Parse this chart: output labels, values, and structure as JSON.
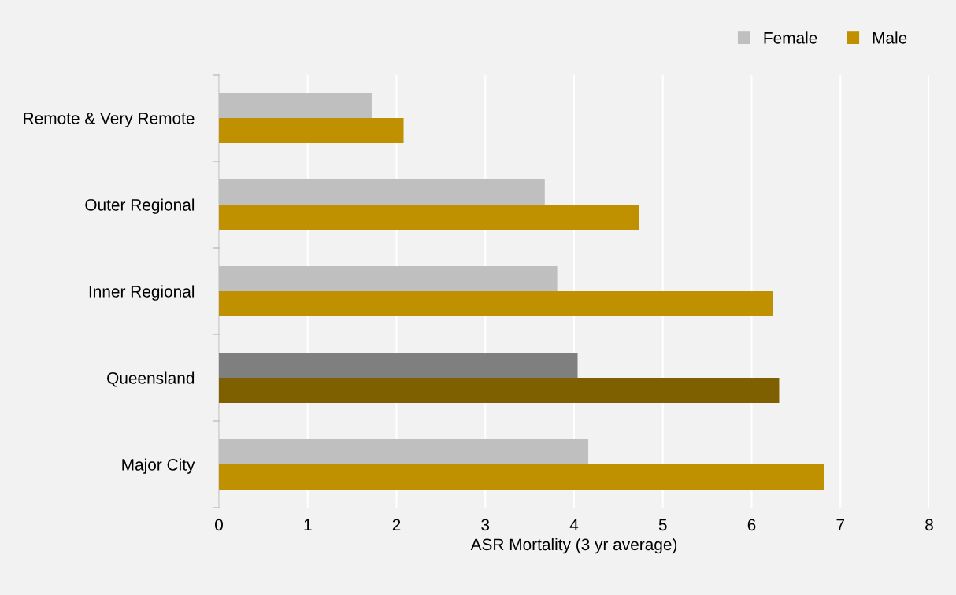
{
  "chart_data": {
    "type": "bar",
    "orientation": "horizontal",
    "xlabel": "ASR Mortality (3 yr average)",
    "categories": [
      "Remote & Very Remote",
      "Outer Regional",
      "Inner Regional",
      "Queensland",
      "Major City"
    ],
    "series": [
      {
        "name": "Female",
        "color": "#bfbfbf",
        "colors": [
          "#bfbfbf",
          "#bfbfbf",
          "#bfbfbf",
          "#7f7f7f",
          "#bfbfbf"
        ],
        "values": [
          1.72,
          3.67,
          3.81,
          4.04,
          4.16
        ]
      },
      {
        "name": "Male",
        "color": "#bf9000",
        "colors": [
          "#bf9000",
          "#bf9000",
          "#bf9000",
          "#7f6000",
          "#bf9000"
        ],
        "values": [
          2.08,
          4.73,
          6.24,
          6.31,
          6.82
        ]
      }
    ],
    "xlim": [
      0,
      8
    ],
    "xticks": [
      0,
      1,
      2,
      3,
      4,
      5,
      6,
      7,
      8
    ],
    "grid": "x",
    "legend": "top right"
  }
}
